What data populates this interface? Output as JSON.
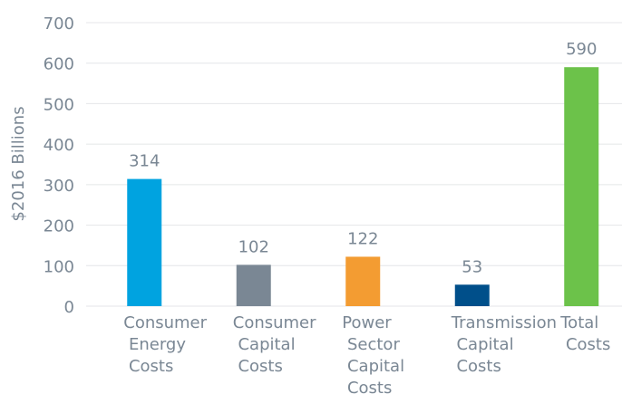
{
  "chart_data": {
    "type": "bar",
    "ylabel": "$2016 Billions",
    "categories": [
      "Consumer Energy Costs",
      "Consumer Capital Costs",
      "Power Sector Capital Costs",
      "Transmission Capital Costs",
      "Total Costs"
    ],
    "values": [
      314,
      102,
      122,
      53,
      590
    ],
    "colors": [
      "#00a3e0",
      "#7a8794",
      "#f39c32",
      "#004f8a",
      "#6cc24a"
    ],
    "ylim": [
      0,
      700
    ],
    "yticks": [
      0,
      100,
      200,
      300,
      400,
      500,
      600,
      700
    ],
    "grid": true
  }
}
